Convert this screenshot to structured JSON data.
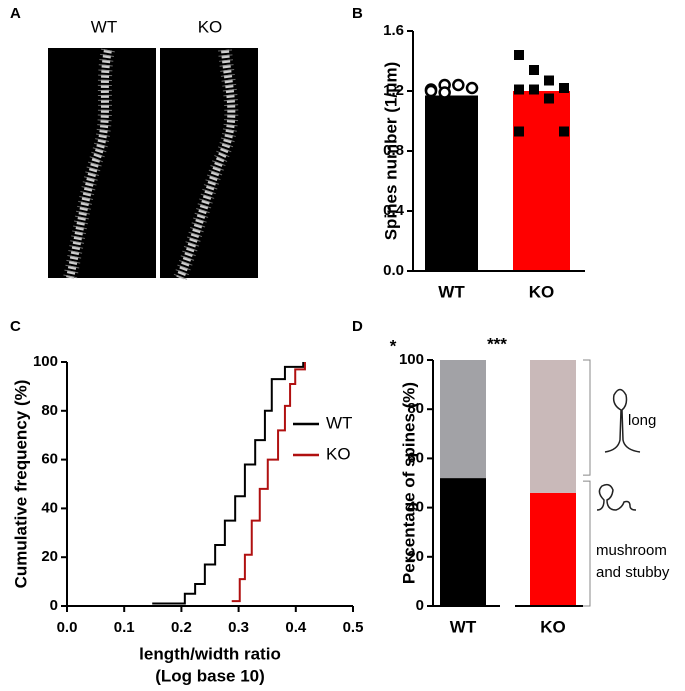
{
  "image_panel": {
    "panel": "A",
    "labels": [
      "WT",
      "KO"
    ]
  },
  "chart_data": [
    {
      "type": "bar",
      "panel": "B",
      "ylabel": "Spines number (1/μm)",
      "categories": [
        "WT",
        "KO"
      ],
      "values": [
        1.17,
        1.2
      ],
      "colors": [
        "#000000",
        "#ff0000"
      ],
      "points": [
        [
          1.21,
          1.24,
          1.24,
          1.22,
          1.2,
          1.19
        ],
        [
          1.44,
          1.34,
          1.27,
          1.22,
          1.21,
          1.21,
          1.15,
          0.93,
          0.93
        ]
      ],
      "ylim": [
        0,
        1.6
      ],
      "yticks": [
        {
          "value": 0,
          "label": "0.0"
        },
        0.4,
        0.8,
        1.2,
        1.6
      ]
    },
    {
      "type": "line",
      "panel": "C",
      "ylabel": "Cumulative frequency (%)",
      "xlabel": [
        "length/width ratio",
        "(Log base 10)"
      ],
      "annotation": "*",
      "legend": "right",
      "series": [
        {
          "name": "WT",
          "color": "#000000",
          "x": [
            0.149,
            0.206,
            0.224,
            0.241,
            0.259,
            0.276,
            0.294,
            0.311,
            0.329,
            0.346,
            0.358,
            0.381,
            0.413
          ],
          "values": [
            1,
            5,
            9,
            17,
            25,
            35,
            45,
            58,
            68,
            80,
            93,
            98,
            100
          ]
        },
        {
          "name": "KO",
          "color": "#b01010",
          "x": [
            0.288,
            0.302,
            0.311,
            0.323,
            0.337,
            0.351,
            0.369,
            0.381,
            0.39,
            0.399,
            0.416
          ],
          "values": [
            2,
            11,
            21,
            35,
            48,
            60,
            72,
            82,
            91,
            97,
            100
          ]
        }
      ],
      "xlim": [
        0,
        0.5
      ],
      "xticks": [
        {
          "value": 0,
          "label": "0.0"
        },
        0.1,
        0.2,
        0.3,
        0.4,
        0.5
      ],
      "ylim": [
        0,
        100
      ],
      "yticks": [
        0,
        20,
        40,
        60,
        80,
        100
      ]
    },
    {
      "type": "stacked-bar",
      "panel": "D",
      "ylabel": "Percentage of spines (%)",
      "annotation": "***",
      "categories": [
        "WT",
        "KO"
      ],
      "series": [
        {
          "name": "mushroom and stubby",
          "colors": [
            "#000000",
            "#ff0000"
          ],
          "values": [
            52,
            46
          ]
        },
        {
          "name": "long",
          "colors": [
            "#a2a2a6",
            "#c9b9b9"
          ],
          "values": [
            48,
            54
          ]
        }
      ],
      "ylim": [
        0,
        100
      ],
      "yticks": [
        0,
        20,
        40,
        60,
        80,
        100
      ]
    }
  ]
}
